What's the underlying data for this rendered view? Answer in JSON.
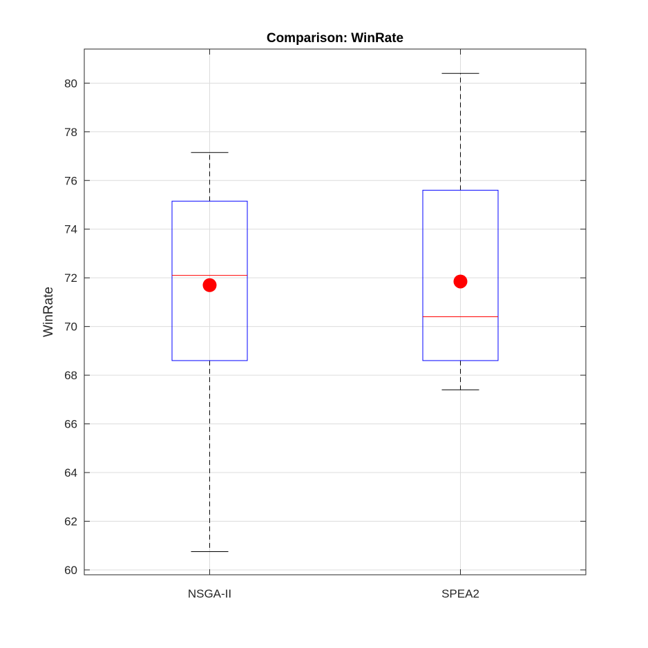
{
  "chart_data": {
    "type": "boxplot",
    "title": "Comparison: WinRate",
    "xlabel": "",
    "ylabel": "WinRate",
    "ylim": [
      59.8,
      81.4
    ],
    "yticks": [
      60,
      62,
      64,
      66,
      68,
      70,
      72,
      74,
      76,
      78,
      80
    ],
    "grid": true,
    "categories": [
      "NSGA-II",
      "SPEA2"
    ],
    "boxes": [
      {
        "name": "NSGA-II",
        "whisker_low": 60.75,
        "q1": 68.6,
        "median": 72.1,
        "q3": 75.15,
        "whisker_high": 77.15,
        "mean": 71.7
      },
      {
        "name": "SPEA2",
        "whisker_low": 67.4,
        "q1": 68.6,
        "median": 70.4,
        "q3": 75.6,
        "whisker_high": 80.4,
        "mean": 71.85
      }
    ],
    "colors": {
      "box": "#0000ff",
      "median": "#ff0000",
      "mean_marker": "#ff0000",
      "whisker": "#000000",
      "grid": "#dcdcdc",
      "axes": "#262626"
    }
  }
}
